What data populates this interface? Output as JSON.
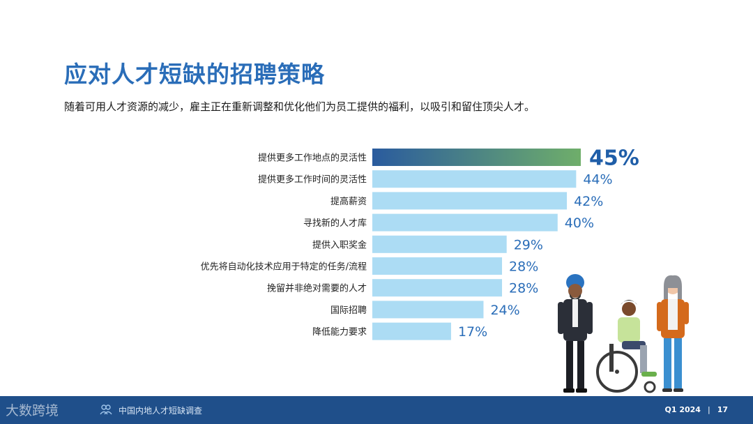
{
  "header": {
    "title": "应对人才短缺的招聘策略",
    "subtitle": "随着可用人才资源的减少，雇主正在重新调整和优化他们为员工提供的福利，以吸引和留住顶尖人才。"
  },
  "chart_data": {
    "type": "bar",
    "orientation": "horizontal",
    "categories": [
      "提供更多工作地点的灵活性",
      "提供更多工作时间的灵活性",
      "提高薪资",
      "寻找新的人才库",
      "提供入职奖金",
      "优先将自动化技术应用于特定的任务/流程",
      "挽留并非绝对需要的人才",
      "国际招聘",
      "降低能力要求"
    ],
    "values": [
      45,
      44,
      42,
      40,
      29,
      28,
      28,
      24,
      17
    ],
    "value_labels": [
      "45%",
      "44%",
      "42%",
      "40%",
      "29%",
      "28%",
      "28%",
      "24%",
      "17%"
    ],
    "highlight_index": 0,
    "colors": {
      "bar": "#acdcf4",
      "highlight_start": "#2a5b9e",
      "highlight_end": "#6fae6a"
    }
  },
  "footer": {
    "brand_watermark": "大数跨境",
    "report_name": "中国内地人才短缺调查",
    "period": "Q1 2024",
    "separator": "|",
    "page_number": "17"
  },
  "illustration": {
    "icon": "people-illustration"
  }
}
